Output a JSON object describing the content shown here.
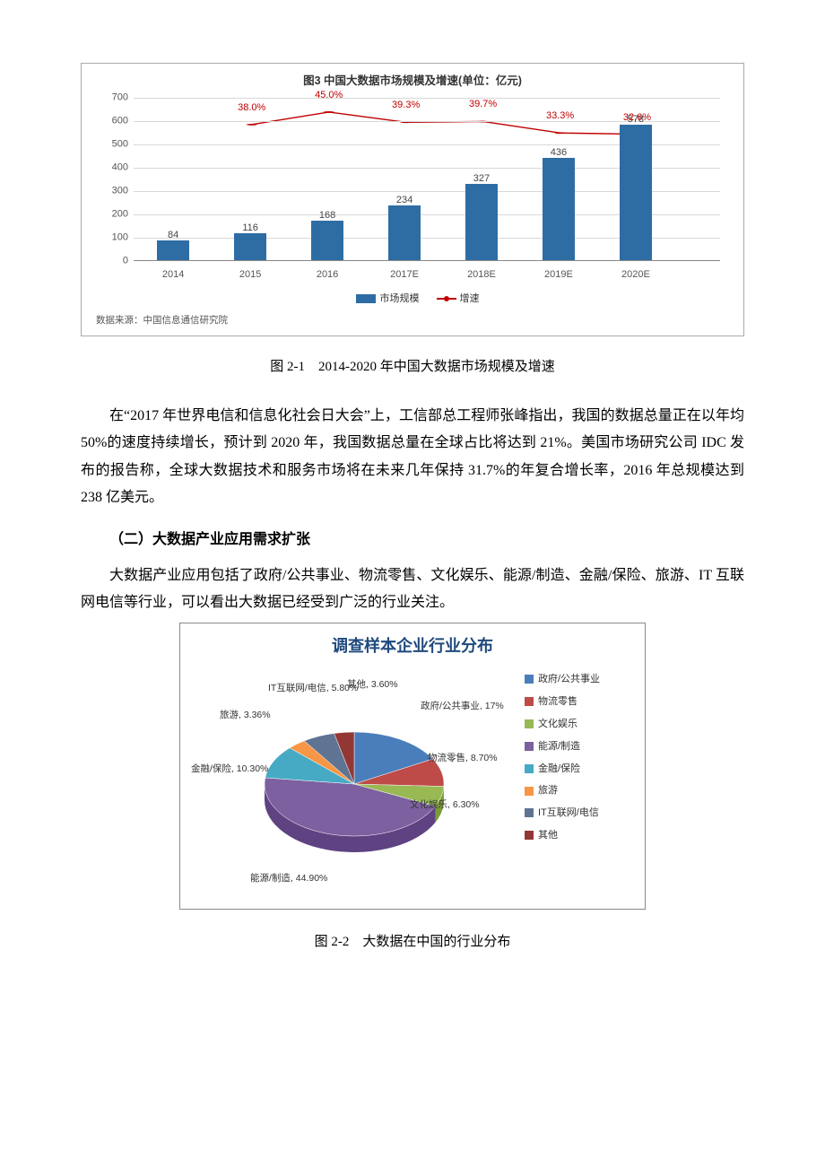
{
  "barChart": {
    "type": "bar+line",
    "title": "图3 中国大数据市场规模及增速(单位：亿元)",
    "categories": [
      "2014",
      "2015",
      "2016",
      "2017E",
      "2018E",
      "2019E",
      "2020E"
    ],
    "bar_values": [
      84,
      116,
      168,
      234,
      327,
      436,
      578
    ],
    "bar_color": "#2e6da4",
    "line_pct": [
      null,
      38.0,
      45.0,
      39.3,
      39.7,
      33.3,
      32.6
    ],
    "line_color": "#c00000",
    "marker_color": "#c00000",
    "ylim": [
      0,
      700
    ],
    "ytick_step": 100,
    "grid_color": "#d8d8d8",
    "axis_color": "#888888",
    "legend": {
      "bar": "市场规模",
      "line": "增速"
    },
    "source": "数据来源：中国信息通信研究院",
    "label_fontsize": 11,
    "title_fontsize": 12.5,
    "background_color": "#ffffff"
  },
  "fig1_caption": "图 2-1　2014-2020 年中国大数据市场规模及增速",
  "paragraph1": "在“2017 年世界电信和信息化社会日大会”上，工信部总工程师张峰指出，我国的数据总量正在以年均 50%的速度持续增长，预计到 2020 年，我国数据总量在全球占比将达到 21%。美国市场研究公司 IDC 发布的报告称，全球大数据技术和服务市场将在未来几年保持 31.7%的年复合增长率，2016 年总规模达到 238 亿美元。",
  "heading2": "（二）大数据产业应用需求扩张",
  "paragraph2": "大数据产业应用包括了政府/公共事业、物流零售、文化娱乐、能源/制造、金融/保险、旅游、IT 互联网电信等行业，可以看出大数据已经受到广泛的行业关注。",
  "pieChart": {
    "type": "pie-3d",
    "title": "调查样本企业行业分布",
    "title_color": "#1f497d",
    "slices": [
      {
        "label": "政府/公共事业",
        "value": 17.0,
        "pct_text": "17%",
        "color": "#4a7ebb"
      },
      {
        "label": "物流零售",
        "value": 8.7,
        "pct_text": "8.70%",
        "color": "#be4b48"
      },
      {
        "label": "文化娱乐",
        "value": 6.3,
        "pct_text": "6.30%",
        "color": "#98b954"
      },
      {
        "label": "能源/制造",
        "value": 44.9,
        "pct_text": "44.90%",
        "color": "#7d60a0"
      },
      {
        "label": "金融/保险",
        "value": 10.3,
        "pct_text": "10.30%",
        "color": "#46aac5"
      },
      {
        "label": "旅游",
        "value": 3.36,
        "pct_text": "3.36%",
        "color": "#f79646"
      },
      {
        "label": "IT互联网/电信",
        "value": 5.8,
        "pct_text": "5.80%",
        "color": "#5f7393"
      },
      {
        "label": "其他",
        "value": 3.6,
        "pct_text": "3.60%",
        "color": "#933735"
      }
    ],
    "legend_prefix": "■",
    "border_color": "#888888",
    "title_fontsize": 18,
    "label_fontsize": 10.5
  },
  "fig2_caption": "图 2-2　大数据在中国的行业分布"
}
